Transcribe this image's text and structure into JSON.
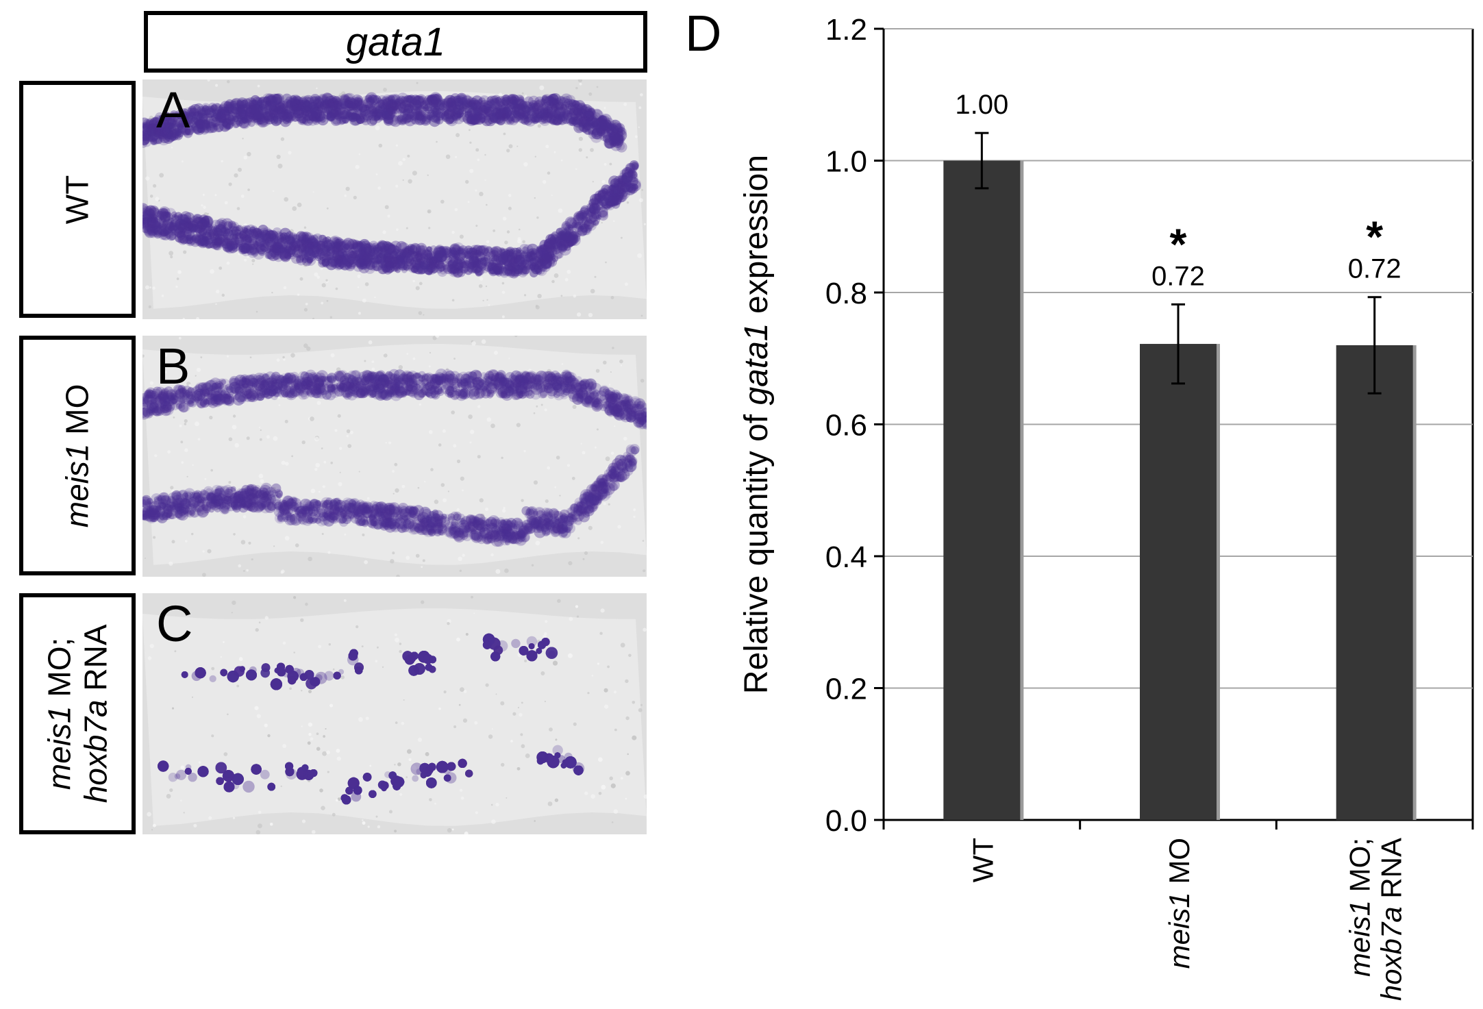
{
  "header": {
    "gene_title": "gata1"
  },
  "rows": [
    {
      "letter": "A",
      "label_parts": [
        {
          "text": "WT",
          "italic": false
        }
      ]
    },
    {
      "letter": "B",
      "label_parts": [
        {
          "text": "meis1",
          "italic": true
        },
        {
          "text": " MO",
          "italic": false
        }
      ]
    },
    {
      "letter": "C",
      "label_line1": [
        {
          "text": "meis1",
          "italic": true
        },
        {
          "text": " MO;",
          "italic": false
        }
      ],
      "label_line2": [
        {
          "text": "hoxb7a",
          "italic": true
        },
        {
          "text": " RNA",
          "italic": false
        }
      ]
    }
  ],
  "stain_color": "#4b2f93",
  "chart_data": {
    "panel_letter": "D",
    "type": "bar",
    "categories": [
      "WT",
      "meis1 MO",
      "meis1 MO; hoxb7a RNA"
    ],
    "category_labels": [
      {
        "lines": [
          [
            {
              "text": "WT",
              "italic": false
            }
          ]
        ]
      },
      {
        "lines": [
          [
            {
              "text": "meis1",
              "italic": true
            },
            {
              "text": " MO",
              "italic": false
            }
          ]
        ]
      },
      {
        "lines": [
          [
            {
              "text": "meis1",
              "italic": true
            },
            {
              "text": " MO;",
              "italic": false
            }
          ],
          [
            {
              "text": "hoxb7a",
              "italic": true
            },
            {
              "text": " RNA",
              "italic": false
            }
          ]
        ]
      }
    ],
    "values": [
      1.0,
      0.722,
      0.72
    ],
    "errors": [
      0.042,
      0.06,
      0.073
    ],
    "value_labels": [
      "1.00",
      "0.72",
      "0.72"
    ],
    "significance": [
      "",
      "*",
      "*"
    ],
    "ylabel_parts": [
      {
        "text": "Relative quantity of ",
        "italic": false
      },
      {
        "text": "gata1",
        "italic": true
      },
      {
        "text": " expression",
        "italic": false
      }
    ],
    "ylim": [
      0,
      1.2
    ],
    "yticks": [
      "0.0",
      "0.2",
      "0.4",
      "0.6",
      "0.8",
      "1.0",
      "1.2"
    ],
    "grid": true,
    "bar_color": "#363636",
    "grid_color": "#a6a6a6"
  }
}
